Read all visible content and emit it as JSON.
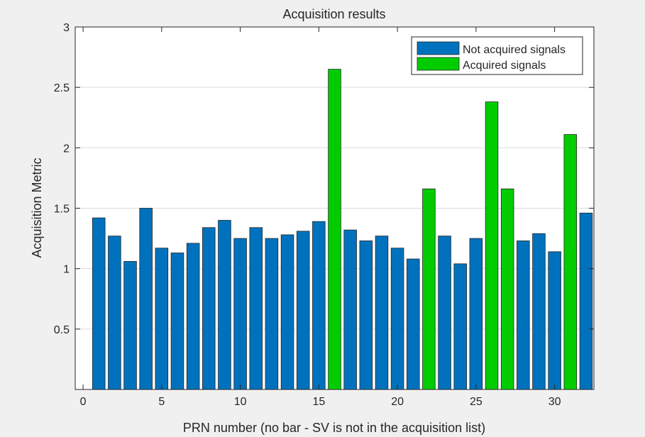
{
  "chart_data": {
    "type": "bar",
    "title": "Acquisition results",
    "xlabel": "PRN number (no bar - SV is not in the acquisition list)",
    "ylabel": "Acquisition Metric",
    "xlim": [
      -0.5,
      32.5
    ],
    "ylim": [
      0,
      3
    ],
    "xticks": [
      0,
      5,
      10,
      15,
      20,
      25,
      30
    ],
    "yticks": [
      0.5,
      1,
      1.5,
      2,
      2.5,
      3
    ],
    "grid": "y",
    "legend_position": "top-right",
    "series": [
      {
        "name": "Not acquired signals",
        "color": "#0072BD",
        "points": [
          {
            "x": 1,
            "y": 1.42
          },
          {
            "x": 2,
            "y": 1.27
          },
          {
            "x": 3,
            "y": 1.06
          },
          {
            "x": 4,
            "y": 1.5
          },
          {
            "x": 5,
            "y": 1.17
          },
          {
            "x": 6,
            "y": 1.13
          },
          {
            "x": 7,
            "y": 1.21
          },
          {
            "x": 8,
            "y": 1.34
          },
          {
            "x": 9,
            "y": 1.4
          },
          {
            "x": 10,
            "y": 1.25
          },
          {
            "x": 11,
            "y": 1.34
          },
          {
            "x": 12,
            "y": 1.25
          },
          {
            "x": 13,
            "y": 1.28
          },
          {
            "x": 14,
            "y": 1.31
          },
          {
            "x": 15,
            "y": 1.39
          },
          {
            "x": 17,
            "y": 1.32
          },
          {
            "x": 18,
            "y": 1.23
          },
          {
            "x": 19,
            "y": 1.27
          },
          {
            "x": 20,
            "y": 1.17
          },
          {
            "x": 21,
            "y": 1.08
          },
          {
            "x": 23,
            "y": 1.27
          },
          {
            "x": 24,
            "y": 1.04
          },
          {
            "x": 25,
            "y": 1.25
          },
          {
            "x": 28,
            "y": 1.23
          },
          {
            "x": 29,
            "y": 1.29
          },
          {
            "x": 30,
            "y": 1.14
          },
          {
            "x": 32,
            "y": 1.46
          }
        ]
      },
      {
        "name": "Acquired signals",
        "color": "#00CC00",
        "points": [
          {
            "x": 16,
            "y": 2.65
          },
          {
            "x": 22,
            "y": 1.66
          },
          {
            "x": 26,
            "y": 2.38
          },
          {
            "x": 27,
            "y": 1.66
          },
          {
            "x": 31,
            "y": 2.11
          }
        ]
      }
    ]
  }
}
